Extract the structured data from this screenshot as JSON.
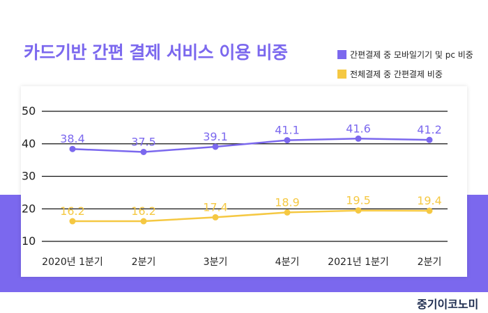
{
  "title": "카드기반 간편 결제 서비스 이용 비중",
  "brand": "중기이코노미",
  "colors": {
    "accent": "#7b68ee",
    "series1": "#7b68ee",
    "series2": "#f5c842",
    "brand": "#1e2d50"
  },
  "chart_data": {
    "type": "line",
    "title": "카드기반 간편 결제 서비스 이용 비중",
    "xlabel": "",
    "ylabel": "",
    "categories": [
      "2020년 1분기",
      "2분기",
      "3분기",
      "4분기",
      "2021년 1분기",
      "2분기"
    ],
    "ylim": [
      10,
      50
    ],
    "yticks": [
      "50",
      "40",
      "30",
      "20",
      "10"
    ],
    "grid": true,
    "legend_position": "top-right",
    "series": [
      {
        "name": "간편결제 중 모바일기기 및 pc 비중",
        "color": "#7b68ee",
        "values": [
          38.4,
          37.5,
          39.1,
          41.1,
          41.6,
          41.2
        ],
        "labels": [
          "38.4",
          "37.5",
          "39.1",
          "41.1",
          "41.6",
          "41.2"
        ]
      },
      {
        "name": "전체결제 중 간편결제  비중",
        "color": "#f5c842",
        "values": [
          16.2,
          16.2,
          17.4,
          18.9,
          19.5,
          19.4
        ],
        "labels": [
          "16.2",
          "16.2",
          "17.4",
          "18.9",
          "19.5",
          "19.4"
        ]
      }
    ]
  }
}
